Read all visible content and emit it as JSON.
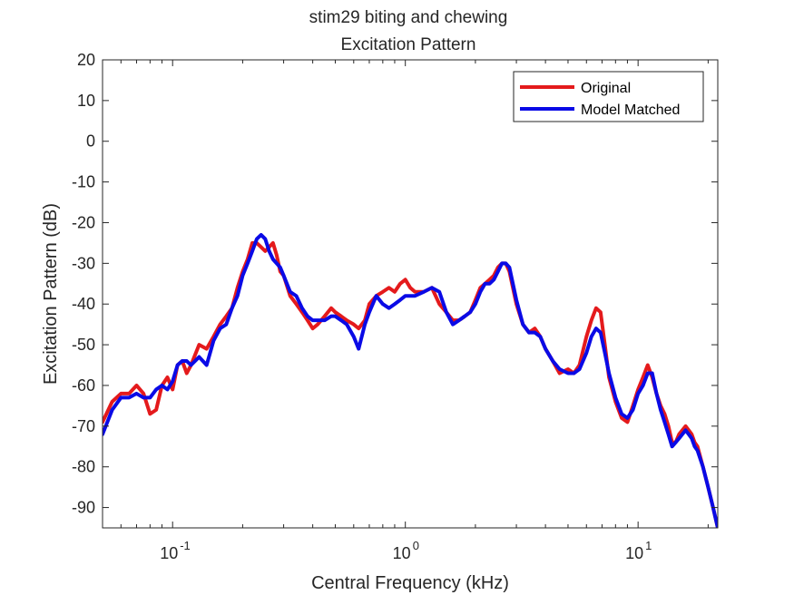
{
  "chart_data": {
    "type": "line",
    "title": "stim29 biting and chewing",
    "subtitle": "Excitation Pattern",
    "xlabel": "Central Frequency (kHz)",
    "ylabel": "Excitation Pattern (dB)",
    "x_scale": "log",
    "xlim": [
      0.05,
      22
    ],
    "ylim": [
      -95,
      20
    ],
    "yticks": [
      20,
      10,
      0,
      -10,
      -20,
      -30,
      -40,
      -50,
      -60,
      -70,
      -80,
      -90
    ],
    "ytick_labels": [
      "20",
      "10",
      "0",
      "-10",
      "-20",
      "-30",
      "-40",
      "-50",
      "-60",
      "-70",
      "-80",
      "-90"
    ],
    "xticks": [
      0.1,
      1,
      10
    ],
    "xtick_labels": [
      {
        "base": "10",
        "exp": "-1"
      },
      {
        "base": "10",
        "exp": "0"
      },
      {
        "base": "10",
        "exp": "1"
      }
    ],
    "grid": false,
    "legend": "top-right",
    "series": [
      {
        "name": "Original",
        "color": "#e41a1c",
        "x": [
          0.05,
          0.055,
          0.06,
          0.065,
          0.07,
          0.075,
          0.08,
          0.085,
          0.09,
          0.095,
          0.1,
          0.105,
          0.11,
          0.115,
          0.12,
          0.13,
          0.14,
          0.15,
          0.16,
          0.17,
          0.18,
          0.19,
          0.2,
          0.21,
          0.22,
          0.23,
          0.24,
          0.25,
          0.26,
          0.27,
          0.28,
          0.29,
          0.3,
          0.32,
          0.34,
          0.36,
          0.38,
          0.4,
          0.42,
          0.45,
          0.48,
          0.5,
          0.53,
          0.56,
          0.6,
          0.63,
          0.67,
          0.7,
          0.75,
          0.8,
          0.85,
          0.9,
          0.95,
          1.0,
          1.05,
          1.1,
          1.2,
          1.3,
          1.4,
          1.5,
          1.6,
          1.7,
          1.8,
          1.9,
          2.0,
          2.1,
          2.2,
          2.3,
          2.4,
          2.5,
          2.6,
          2.7,
          2.8,
          3.0,
          3.2,
          3.4,
          3.6,
          3.8,
          4.0,
          4.3,
          4.6,
          5.0,
          5.3,
          5.6,
          6.0,
          6.3,
          6.6,
          6.9,
          7.2,
          7.5,
          8.0,
          8.5,
          9.0,
          9.5,
          10.0,
          10.5,
          11.0,
          11.5,
          12.0,
          12.5,
          13.0,
          13.5,
          14.0,
          14.5,
          15.0,
          15.5,
          16.0,
          16.5,
          17.0,
          17.5,
          18.0,
          19.0,
          20.0,
          21.0,
          22.0
        ],
        "values": [
          -69,
          -64,
          -62,
          -62,
          -60,
          -62,
          -67,
          -66,
          -60,
          -58,
          -61,
          -55,
          -54,
          -57,
          -55,
          -50,
          -51,
          -48,
          -45,
          -43,
          -41,
          -36,
          -32,
          -29,
          -25,
          -25,
          -26,
          -27,
          -26,
          -25,
          -28,
          -32,
          -33,
          -38,
          -40,
          -42,
          -44,
          -46,
          -45,
          -43,
          -41,
          -42,
          -43,
          -44,
          -45,
          -46,
          -44,
          -40,
          -38,
          -37,
          -36,
          -37,
          -35,
          -34,
          -36,
          -37,
          -37,
          -36,
          -40,
          -42,
          -44,
          -44,
          -43,
          -42,
          -39,
          -36,
          -35,
          -34,
          -33,
          -31,
          -30,
          -30,
          -32,
          -40,
          -45,
          -47,
          -46,
          -48,
          -51,
          -54,
          -57,
          -56,
          -57,
          -55,
          -48,
          -44,
          -41,
          -42,
          -50,
          -58,
          -64,
          -68,
          -69,
          -65,
          -61,
          -58,
          -55,
          -58,
          -62,
          -65,
          -67,
          -70,
          -74,
          -74,
          -72,
          -71,
          -70,
          -71,
          -72,
          -74,
          -75,
          -80,
          -85,
          -90,
          -95
        ]
      },
      {
        "name": "Model Matched",
        "color": "#0a0ae6",
        "x": [
          0.05,
          0.055,
          0.06,
          0.065,
          0.07,
          0.075,
          0.08,
          0.085,
          0.09,
          0.095,
          0.1,
          0.105,
          0.11,
          0.115,
          0.12,
          0.13,
          0.14,
          0.15,
          0.16,
          0.17,
          0.18,
          0.19,
          0.2,
          0.21,
          0.22,
          0.23,
          0.24,
          0.25,
          0.26,
          0.27,
          0.28,
          0.29,
          0.3,
          0.32,
          0.34,
          0.36,
          0.38,
          0.4,
          0.42,
          0.45,
          0.48,
          0.5,
          0.53,
          0.56,
          0.6,
          0.63,
          0.67,
          0.7,
          0.75,
          0.8,
          0.85,
          0.9,
          0.95,
          1.0,
          1.05,
          1.1,
          1.2,
          1.3,
          1.4,
          1.5,
          1.6,
          1.7,
          1.8,
          1.9,
          2.0,
          2.1,
          2.2,
          2.3,
          2.4,
          2.5,
          2.6,
          2.7,
          2.8,
          3.0,
          3.2,
          3.4,
          3.6,
          3.8,
          4.0,
          4.3,
          4.6,
          5.0,
          5.3,
          5.6,
          6.0,
          6.3,
          6.6,
          6.9,
          7.2,
          7.5,
          8.0,
          8.5,
          9.0,
          9.5,
          10.0,
          10.5,
          11.0,
          11.5,
          12.0,
          12.5,
          13.0,
          13.5,
          14.0,
          14.5,
          15.0,
          15.5,
          16.0,
          16.5,
          17.0,
          17.5,
          18.0,
          19.0,
          20.0,
          21.0,
          22.0
        ],
        "values": [
          -72,
          -66,
          -63,
          -63,
          -62,
          -63,
          -63,
          -61,
          -60,
          -61,
          -59,
          -55,
          -54,
          -54,
          -55,
          -53,
          -55,
          -49,
          -46,
          -45,
          -41,
          -38,
          -33,
          -30,
          -27,
          -24,
          -23,
          -24,
          -27,
          -29,
          -30,
          -31,
          -33,
          -37,
          -38,
          -41,
          -43,
          -44,
          -44,
          -44,
          -43,
          -43,
          -44,
          -45,
          -48,
          -51,
          -45,
          -42,
          -38,
          -40,
          -41,
          -40,
          -39,
          -38,
          -38,
          -38,
          -37,
          -36,
          -37,
          -42,
          -45,
          -44,
          -43,
          -42,
          -40,
          -37,
          -35,
          -35,
          -34,
          -32,
          -30,
          -30,
          -31,
          -39,
          -45,
          -47,
          -47,
          -48,
          -51,
          -54,
          -56,
          -57,
          -57,
          -56,
          -52,
          -48,
          -46,
          -47,
          -52,
          -57,
          -63,
          -67,
          -68,
          -66,
          -62,
          -60,
          -57,
          -57,
          -62,
          -66,
          -69,
          -72,
          -75,
          -74,
          -73,
          -72,
          -71,
          -72,
          -73,
          -75,
          -76,
          -80,
          -85,
          -90,
          -95
        ]
      }
    ]
  }
}
